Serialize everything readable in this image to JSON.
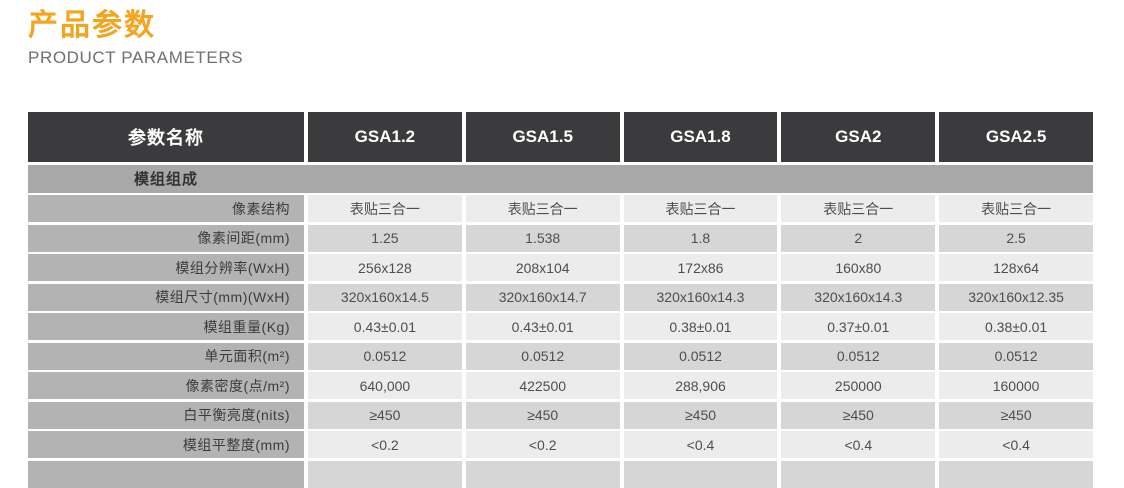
{
  "page": {
    "title_cn": "产品参数",
    "title_en": "PRODUCT PARAMETERS"
  },
  "colors": {
    "accent_orange": "#F4A41D",
    "header_bg": "#3B3B3D",
    "section_bg": "#A8A8A8",
    "label_bg": "#B3B3B3",
    "row_light": "#ECECEC",
    "row_dark": "#D6D6D6"
  },
  "table": {
    "header": [
      "参数名称",
      "GSA1.2",
      "GSA1.5",
      "GSA1.8",
      "GSA2",
      "GSA2.5"
    ],
    "section": "模组组成",
    "rows": [
      {
        "label": "像素结构",
        "values": [
          "表贴三合一",
          "表贴三合一",
          "表贴三合一",
          "表贴三合一",
          "表贴三合一"
        ]
      },
      {
        "label": "像素间距(mm)",
        "values": [
          "1.25",
          "1.538",
          "1.8",
          "2",
          "2.5"
        ]
      },
      {
        "label": "模组分辨率(WxH)",
        "values": [
          "256x128",
          "208x104",
          "172x86",
          "160x80",
          "128x64"
        ]
      },
      {
        "label": "模组尺寸(mm)(WxH)",
        "values": [
          "320x160x14.5",
          "320x160x14.7",
          "320x160x14.3",
          "320x160x14.3",
          "320x160x12.35"
        ]
      },
      {
        "label": "模组重量(Kg)",
        "values": [
          "0.43±0.01",
          "0.43±0.01",
          "0.38±0.01",
          "0.37±0.01",
          "0.38±0.01"
        ]
      },
      {
        "label": "单元面积(m²)",
        "values": [
          "0.0512",
          "0.0512",
          "0.0512",
          "0.0512",
          "0.0512"
        ]
      },
      {
        "label": "像素密度(点/m²)",
        "values": [
          "640,000",
          "422500",
          "288,906",
          "250000",
          "160000"
        ]
      },
      {
        "label": "白平衡亮度(nits)",
        "values": [
          "≥450",
          "≥450",
          "≥450",
          "≥450",
          "≥450"
        ]
      },
      {
        "label": "模组平整度(mm)",
        "values": [
          "<0.2",
          "<0.2",
          "<0.4",
          "<0.4",
          "<0.4"
        ]
      }
    ]
  }
}
